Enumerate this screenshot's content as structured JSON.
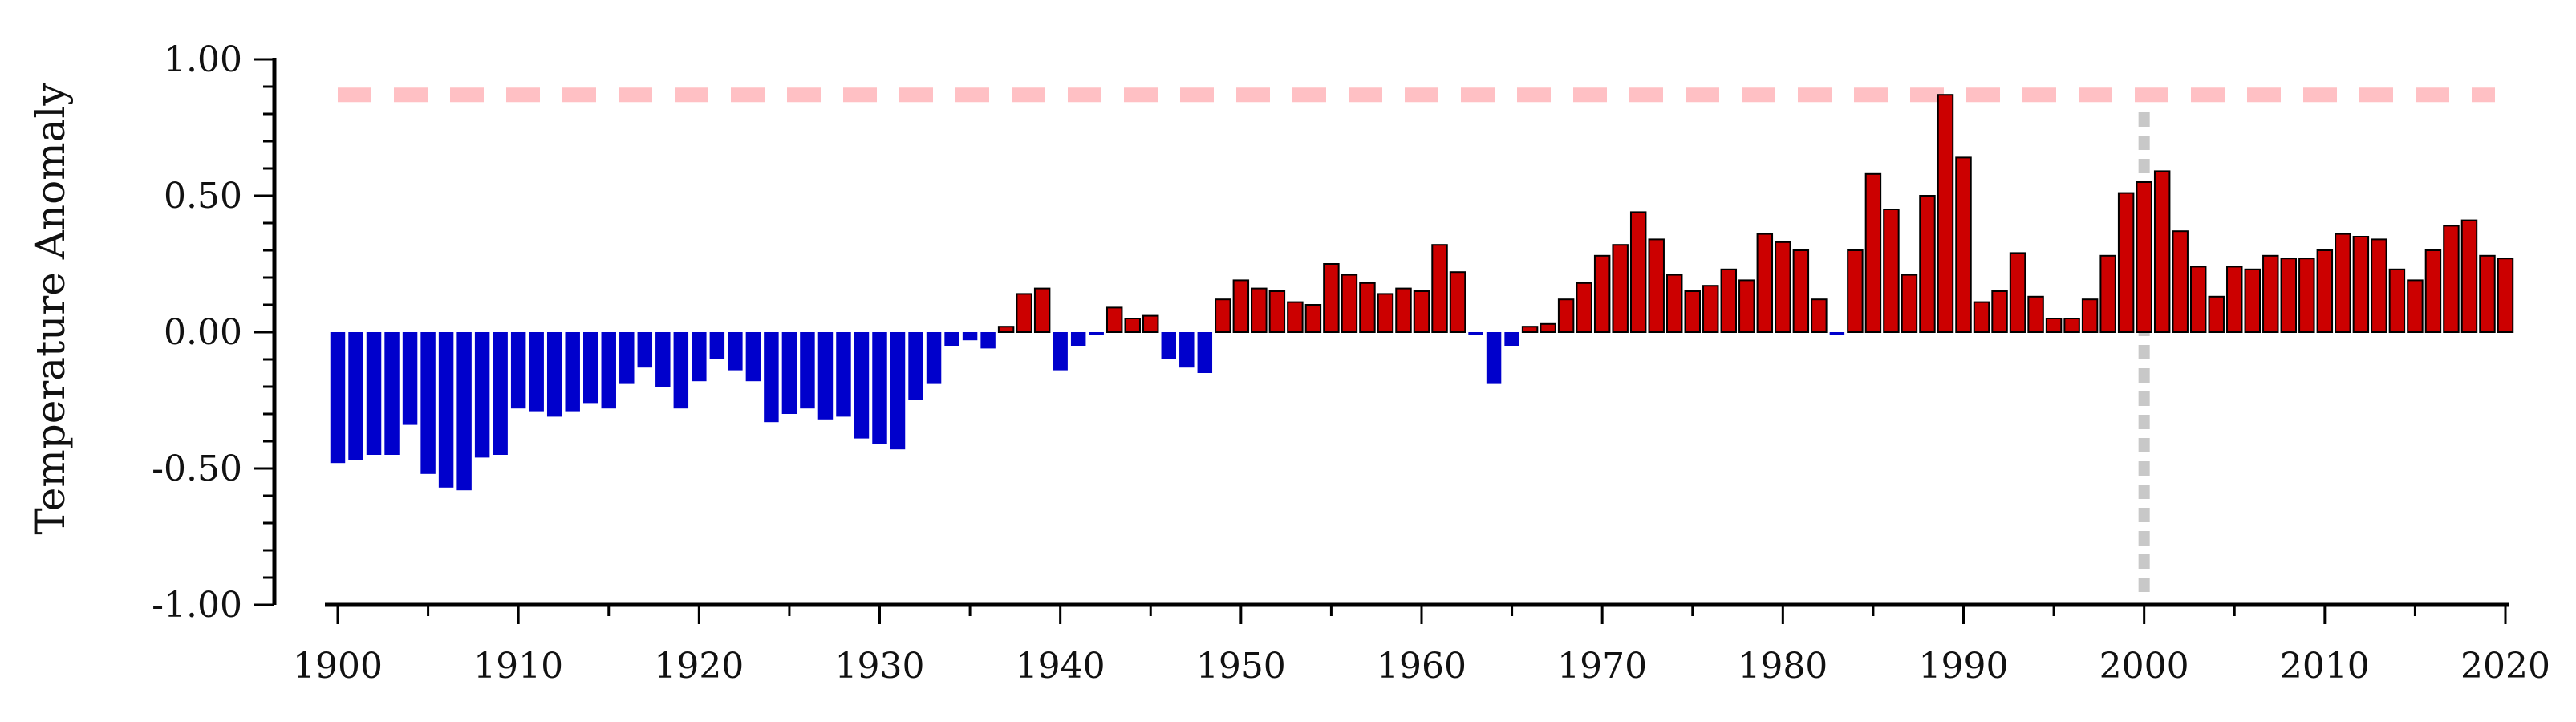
{
  "chart_data": {
    "type": "bar",
    "title": "",
    "xlabel": "",
    "ylabel": "Temperature Anomaly",
    "xlim": [
      1900,
      2020
    ],
    "ylim": [
      -1.0,
      1.0
    ],
    "x_ticks": [
      1900,
      1910,
      1920,
      1930,
      1940,
      1950,
      1960,
      1970,
      1980,
      1990,
      2000,
      2010,
      2020
    ],
    "y_ticks": [
      -1.0,
      -0.5,
      0.0,
      0.5,
      1.0
    ],
    "y_tick_labels": [
      "-1.00",
      "-0.50",
      "0.00",
      "0.50",
      "1.00"
    ],
    "grid": false,
    "legend": "none",
    "colors": {
      "positive": "#cc0000",
      "negative": "#0000cc",
      "positive_edge": "#000000",
      "reference_line": "#ffc0c4",
      "marker_line": "#c8c8c8"
    },
    "reference_line_y": 0.87,
    "vertical_marker_x": 2000,
    "x": [
      1900,
      1901,
      1902,
      1903,
      1904,
      1905,
      1906,
      1907,
      1908,
      1909,
      1910,
      1911,
      1912,
      1913,
      1914,
      1915,
      1916,
      1917,
      1918,
      1919,
      1920,
      1921,
      1922,
      1923,
      1924,
      1925,
      1926,
      1927,
      1928,
      1929,
      1930,
      1931,
      1932,
      1933,
      1934,
      1935,
      1936,
      1937,
      1938,
      1939,
      1940,
      1941,
      1942,
      1943,
      1944,
      1945,
      1946,
      1947,
      1948,
      1949,
      1950,
      1951,
      1952,
      1953,
      1954,
      1955,
      1956,
      1957,
      1958,
      1959,
      1960,
      1961,
      1962,
      1963,
      1964,
      1965,
      1966,
      1967,
      1968,
      1969,
      1970,
      1971,
      1972,
      1973,
      1974,
      1975,
      1976,
      1977,
      1978,
      1979,
      1980,
      1981,
      1982,
      1983,
      1984,
      1985,
      1986,
      1987,
      1988,
      1989,
      1990,
      1991,
      1992,
      1993,
      1994,
      1995,
      1996,
      1997,
      1998,
      1999,
      2000,
      2001,
      2002,
      2003,
      2004,
      2005,
      2006,
      2007,
      2008,
      2009,
      2010,
      2011,
      2012,
      2013,
      2014,
      2015,
      2016,
      2017,
      2018,
      2019,
      2020
    ],
    "values": [
      -0.48,
      -0.47,
      -0.45,
      -0.45,
      -0.34,
      -0.52,
      -0.57,
      -0.58,
      -0.46,
      -0.45,
      -0.28,
      -0.29,
      -0.31,
      -0.29,
      -0.26,
      -0.28,
      -0.19,
      -0.13,
      -0.2,
      -0.28,
      -0.18,
      -0.1,
      -0.14,
      -0.18,
      -0.33,
      -0.3,
      -0.28,
      -0.32,
      -0.31,
      -0.39,
      -0.41,
      -0.43,
      -0.25,
      -0.19,
      -0.05,
      -0.03,
      -0.06,
      0.02,
      0.14,
      0.16,
      -0.14,
      -0.05,
      -0.01,
      0.09,
      0.05,
      0.06,
      -0.1,
      -0.13,
      -0.15,
      0.12,
      0.19,
      0.16,
      0.15,
      0.11,
      0.1,
      0.25,
      0.21,
      0.18,
      0.14,
      0.16,
      0.15,
      0.32,
      0.22,
      -0.01,
      -0.19,
      -0.05,
      0.02,
      0.03,
      0.12,
      0.18,
      0.28,
      0.32,
      0.44,
      0.34,
      0.21,
      0.15,
      0.17,
      0.23,
      0.19,
      0.36,
      0.33,
      0.3,
      0.12,
      -0.01,
      0.3,
      0.58,
      0.45,
      0.21,
      0.5,
      0.87,
      0.64,
      0.11,
      0.15,
      0.29,
      0.13,
      0.05,
      0.05,
      0.12,
      0.28,
      0.51,
      0.55,
      0.59,
      0.37,
      0.24,
      0.13,
      0.24,
      0.23,
      0.28,
      0.27,
      0.27,
      0.3,
      0.36,
      0.35,
      0.34,
      0.23,
      0.19,
      0.3,
      0.39,
      0.41,
      0.28,
      0.27
    ]
  }
}
